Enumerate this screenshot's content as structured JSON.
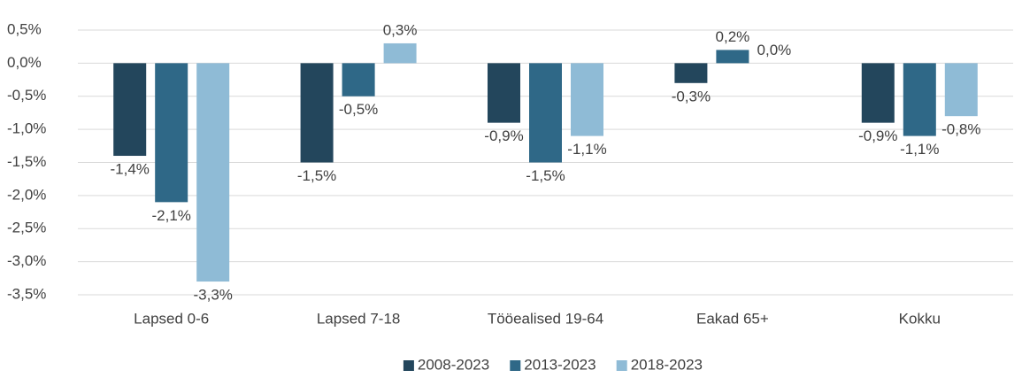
{
  "chart_data": {
    "type": "bar",
    "categories": [
      "Lapsed 0-6",
      "Lapsed 7-18",
      "Tööealised 19-64",
      "Eakad 65+",
      "Kokku"
    ],
    "series": [
      {
        "name": "2008-2023",
        "color": "#23465c",
        "values": [
          -1.4,
          -1.5,
          -0.9,
          -0.3,
          -0.9
        ],
        "value_labels": [
          "-1,4%",
          "-1,5%",
          "-0,9%",
          "-0,3%",
          "-0,9%"
        ]
      },
      {
        "name": "2013-2023",
        "color": "#2f6887",
        "values": [
          -2.1,
          -0.5,
          -1.5,
          0.2,
          -1.1
        ],
        "value_labels": [
          "-2,1%",
          "-0,5%",
          "-1,5%",
          "0,2%",
          "-1,1%"
        ]
      },
      {
        "name": "2018-2023",
        "color": "#8fbbd6",
        "values": [
          -3.3,
          0.3,
          -1.1,
          0.0,
          -0.8
        ],
        "value_labels": [
          "-3,3%",
          "0,3%",
          "-1,1%",
          "0,0%",
          "-0,8%"
        ]
      }
    ],
    "ylim": [
      -3.5,
      0.5
    ],
    "yticks": [
      {
        "value": 0.5,
        "label": "0,5%"
      },
      {
        "value": 0.0,
        "label": "0,0%"
      },
      {
        "value": -0.5,
        "label": "-0,5%"
      },
      {
        "value": -1.0,
        "label": "-1,0%"
      },
      {
        "value": -1.5,
        "label": "-1,5%"
      },
      {
        "value": -2.0,
        "label": "-2,0%"
      },
      {
        "value": -2.5,
        "label": "-2,5%"
      },
      {
        "value": -3.0,
        "label": "-3,0%"
      },
      {
        "value": -3.5,
        "label": "-3,5%"
      }
    ],
    "grid": true,
    "legend": "bottom"
  }
}
